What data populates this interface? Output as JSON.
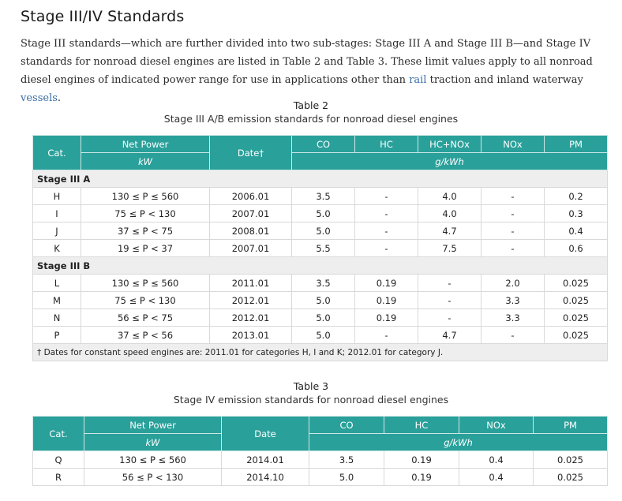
{
  "page": {
    "heading": "Stage III/IV Standards",
    "intro": {
      "part1": "Stage III standards—which are further divided into two sub-stages: Stage III A and Stage III B—and Stage IV standards for nonroad diesel engines are listed in Table 2 and Table 3. These limit values apply to all nonroad diesel engines of indicated power range for use in applications other than ",
      "link_rail": "rail",
      "part2": " traction and inland waterway ",
      "link_vessels": "vessels",
      "part3": "."
    }
  },
  "table2": {
    "number": "Table 2",
    "title": "Stage III A/B emission standards for nonroad diesel engines",
    "headers": {
      "cat": "Cat.",
      "net_power": "Net Power",
      "date": "Date†",
      "co": "CO",
      "hc": "HC",
      "hc_nox": "HC+NOx",
      "nox": "NOx",
      "pm": "PM",
      "unit_kw": "kW",
      "unit_gkwh": "g/kWh"
    },
    "stage_a_label": "Stage III A",
    "stage_a_rows": [
      [
        "H",
        "130 ≤ P ≤ 560",
        "2006.01",
        "3.5",
        "-",
        "4.0",
        "-",
        "0.2"
      ],
      [
        "I",
        "75 ≤ P < 130",
        "2007.01",
        "5.0",
        "-",
        "4.0",
        "-",
        "0.3"
      ],
      [
        "J",
        "37 ≤ P < 75",
        "2008.01",
        "5.0",
        "-",
        "4.7",
        "-",
        "0.4"
      ],
      [
        "K",
        "19 ≤ P < 37",
        "2007.01",
        "5.5",
        "-",
        "7.5",
        "-",
        "0.6"
      ]
    ],
    "stage_b_label": "Stage III B",
    "stage_b_rows": [
      [
        "L",
        "130 ≤ P ≤ 560",
        "2011.01",
        "3.5",
        "0.19",
        "-",
        "2.0",
        "0.025"
      ],
      [
        "M",
        "75 ≤ P < 130",
        "2012.01",
        "5.0",
        "0.19",
        "-",
        "3.3",
        "0.025"
      ],
      [
        "N",
        "56 ≤ P < 75",
        "2012.01",
        "5.0",
        "0.19",
        "-",
        "3.3",
        "0.025"
      ],
      [
        "P",
        "37 ≤ P < 56",
        "2013.01",
        "5.0",
        "-",
        "4.7",
        "-",
        "0.025"
      ]
    ],
    "footnote": "† Dates for constant speed engines are: 2011.01 for categories H, I and K; 2012.01 for category J."
  },
  "table3": {
    "number": "Table 3",
    "title": "Stage IV emission standards for nonroad diesel engines",
    "headers": {
      "cat": "Cat.",
      "net_power": "Net Power",
      "date": "Date",
      "co": "CO",
      "hc": "HC",
      "nox": "NOx",
      "pm": "PM",
      "unit_kw": "kW",
      "unit_gkwh": "g/kWh"
    },
    "rows": [
      [
        "Q",
        "130 ≤ P ≤ 560",
        "2014.01",
        "3.5",
        "0.19",
        "0.4",
        "0.025"
      ],
      [
        "R",
        "56 ≤ P < 130",
        "2014.10",
        "5.0",
        "0.19",
        "0.4",
        "0.025"
      ]
    ]
  }
}
